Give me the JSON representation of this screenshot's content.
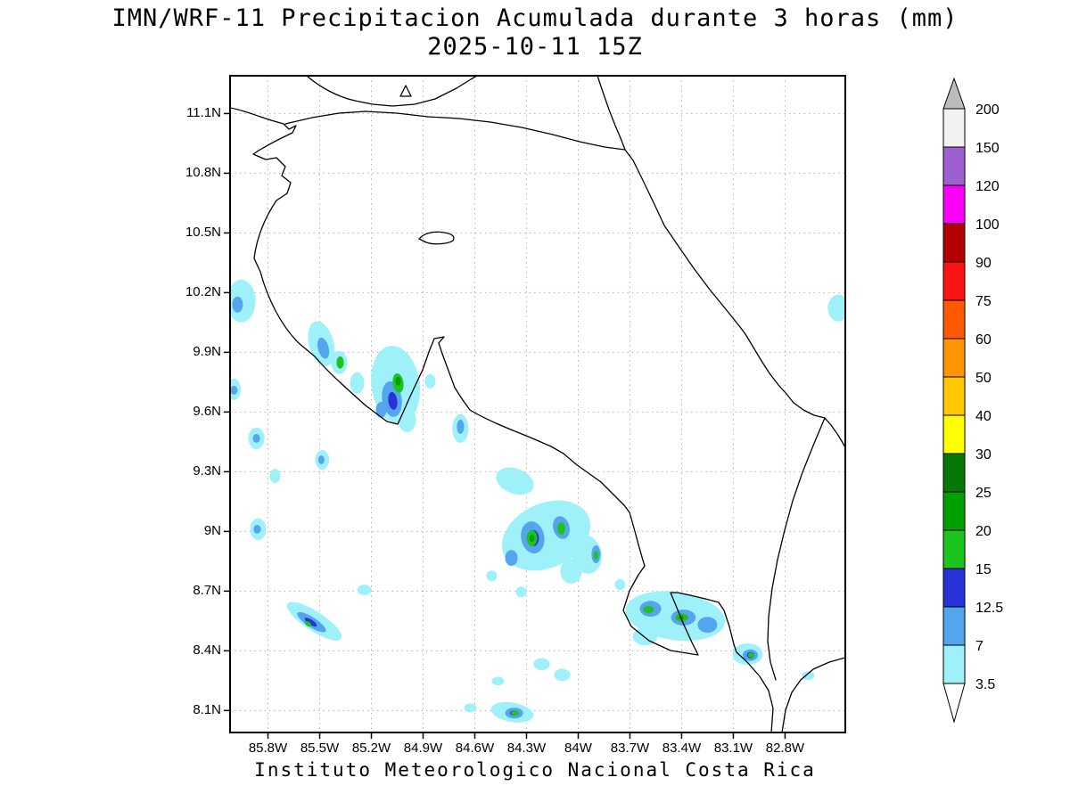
{
  "title": "IMN/WRF-11 Precipitacion Acumulada durante 3 horas (mm)",
  "subtitle": "2025-10-11 15Z",
  "footer": "Instituto Meteorologico Nacional Costa Rica",
  "colorbar": {
    "above_top_color": "#bcbcbc",
    "below_bottom_color": "#ffffff",
    "segment_colors_top_to_bottom": [
      "#f2f2f2",
      "#9e5fd0",
      "#fa00fa",
      "#b40000",
      "#fa1414",
      "#ff5a00",
      "#ff9600",
      "#ffc800",
      "#ffff00",
      "#067806",
      "#00a000",
      "#1ec41e",
      "#2733d6",
      "#55a5ee",
      "#9ff1f9"
    ],
    "palette": {
      "cyan_3p5_7": "#9ff1f9",
      "blue_7_12p5": "#55a5ee",
      "blue_12p5_15": "#2733d6",
      "green_15_20": "#1ec41e",
      "green_20_25": "#00a000"
    }
  },
  "chart_data": {
    "type": "heatmap",
    "title": "IMN/WRF-11 Precipitacion Acumulada durante 3 horas (mm)",
    "valid_time": "2025-10-11 15Z",
    "units": "mm",
    "source": "Instituto Meteorologico Nacional Costa Rica",
    "lat_ticks": [
      "11.1N",
      "10.8N",
      "10.5N",
      "10.2N",
      "9.9N",
      "9.6N",
      "9.3N",
      "9N",
      "8.7N",
      "8.4N",
      "8.1N"
    ],
    "lon_ticks": [
      "85.8W",
      "85.5W",
      "85.2W",
      "84.9W",
      "84.6W",
      "84.3W",
      "84W",
      "83.7W",
      "83.4W",
      "83.1W",
      "82.8W"
    ],
    "lon_range_w": [
      86.02,
      82.45
    ],
    "lat_range_n": [
      7.99,
      11.29
    ],
    "colorbar_levels_mm": [
      "200",
      "150",
      "120",
      "100",
      "90",
      "75",
      "60",
      "50",
      "40",
      "30",
      "25",
      "20",
      "15",
      "12.5",
      "7",
      "3.5"
    ],
    "precip_blobs_lonW_latN_rxDeg_ryDeg_rotDeg_mm": [
      [
        85.955,
        10.158,
        0.083,
        0.107,
        0,
        5
      ],
      [
        85.997,
        9.714,
        0.041,
        0.054,
        0,
        5
      ],
      [
        85.867,
        9.468,
        0.047,
        0.054,
        0,
        5
      ],
      [
        85.49,
        9.943,
        0.072,
        0.116,
        -15,
        5
      ],
      [
        85.386,
        9.849,
        0.047,
        0.058,
        0,
        5
      ],
      [
        85.06,
        9.737,
        0.14,
        0.197,
        -8,
        5
      ],
      [
        84.993,
        9.562,
        0.052,
        0.063,
        0,
        5
      ],
      [
        84.859,
        9.755,
        0.031,
        0.036,
        0,
        5
      ],
      [
        85.283,
        9.746,
        0.041,
        0.054,
        0,
        5
      ],
      [
        84.683,
        9.517,
        0.047,
        0.072,
        0,
        5
      ],
      [
        85.485,
        9.36,
        0.041,
        0.049,
        0,
        5
      ],
      [
        85.759,
        9.279,
        0.031,
        0.036,
        0,
        5
      ],
      [
        85.857,
        9.011,
        0.047,
        0.054,
        0,
        5
      ],
      [
        84.367,
        9.253,
        0.114,
        0.063,
        20,
        5
      ],
      [
        84.186,
        8.979,
        0.269,
        0.161,
        -25,
        5
      ],
      [
        83.953,
        8.885,
        0.088,
        0.099,
        -15,
        5
      ],
      [
        84.041,
        8.8,
        0.062,
        0.063,
        0,
        5
      ],
      [
        85.531,
        8.549,
        0.186,
        0.049,
        33,
        5
      ],
      [
        85.241,
        8.706,
        0.041,
        0.027,
        0,
        5
      ],
      [
        83.437,
        8.575,
        0.29,
        0.121,
        8,
        5
      ],
      [
        83.612,
        8.472,
        0.072,
        0.045,
        0,
        5
      ],
      [
        83.017,
        8.383,
        0.088,
        0.054,
        0,
        5
      ],
      [
        84.383,
        8.091,
        0.124,
        0.049,
        10,
        5
      ],
      [
        84.626,
        8.113,
        0.036,
        0.022,
        0,
        5
      ],
      [
        82.49,
        10.122,
        0.062,
        0.067,
        0,
        5
      ],
      [
        84.502,
        8.777,
        0.031,
        0.027,
        0,
        5
      ],
      [
        84.331,
        8.696,
        0.031,
        0.027,
        0,
        5
      ],
      [
        84.212,
        8.333,
        0.047,
        0.031,
        0,
        5
      ],
      [
        84.093,
        8.279,
        0.047,
        0.031,
        0,
        5
      ],
      [
        84.466,
        8.248,
        0.036,
        0.022,
        0,
        5
      ],
      [
        83.757,
        8.733,
        0.031,
        0.027,
        0,
        5
      ],
      [
        82.666,
        8.275,
        0.036,
        0.022,
        0,
        5
      ],
      [
        85.976,
        10.14,
        0.031,
        0.04,
        0,
        10
      ],
      [
        85.997,
        9.71,
        0.021,
        0.022,
        0,
        10
      ],
      [
        85.867,
        9.468,
        0.021,
        0.022,
        0,
        10
      ],
      [
        85.479,
        9.921,
        0.031,
        0.054,
        -15,
        10
      ],
      [
        85.081,
        9.665,
        0.057,
        0.09,
        -8,
        10
      ],
      [
        85.143,
        9.611,
        0.031,
        0.04,
        0,
        10
      ],
      [
        84.683,
        9.526,
        0.021,
        0.036,
        0,
        10
      ],
      [
        85.49,
        9.36,
        0.018,
        0.022,
        0,
        10
      ],
      [
        85.862,
        9.011,
        0.021,
        0.022,
        0,
        10
      ],
      [
        84.264,
        8.97,
        0.067,
        0.081,
        -10,
        10
      ],
      [
        84.098,
        9.019,
        0.047,
        0.058,
        -15,
        10
      ],
      [
        84.388,
        8.867,
        0.036,
        0.04,
        0,
        10
      ],
      [
        83.897,
        8.885,
        0.026,
        0.045,
        0,
        10
      ],
      [
        85.547,
        8.544,
        0.098,
        0.025,
        33,
        10
      ],
      [
        83.581,
        8.611,
        0.062,
        0.04,
        0,
        10
      ],
      [
        83.39,
        8.567,
        0.072,
        0.04,
        0,
        10
      ],
      [
        83.25,
        8.531,
        0.057,
        0.04,
        0,
        10
      ],
      [
        83.002,
        8.378,
        0.044,
        0.029,
        0,
        10
      ],
      [
        84.372,
        8.087,
        0.052,
        0.027,
        0,
        10
      ],
      [
        85.076,
        9.656,
        0.026,
        0.045,
        -8,
        13
      ],
      [
        84.259,
        8.966,
        0.031,
        0.04,
        0,
        13
      ],
      [
        83.395,
        8.567,
        0.031,
        0.018,
        0,
        13
      ],
      [
        83.0,
        8.378,
        0.021,
        0.016,
        0,
        13
      ],
      [
        85.552,
        8.544,
        0.041,
        0.013,
        33,
        13
      ],
      [
        84.37,
        8.087,
        0.026,
        0.013,
        0,
        13
      ],
      [
        85.381,
        9.849,
        0.021,
        0.031,
        0,
        17
      ],
      [
        85.045,
        9.746,
        0.031,
        0.049,
        -8,
        17
      ],
      [
        84.269,
        8.966,
        0.031,
        0.04,
        0,
        17
      ],
      [
        84.098,
        9.015,
        0.023,
        0.031,
        0,
        17
      ],
      [
        83.897,
        8.88,
        0.013,
        0.022,
        0,
        17
      ],
      [
        85.567,
        8.535,
        0.021,
        0.011,
        33,
        17
      ],
      [
        83.592,
        8.607,
        0.031,
        0.018,
        0,
        17
      ],
      [
        83.4,
        8.567,
        0.036,
        0.02,
        0,
        17
      ],
      [
        82.997,
        8.378,
        0.018,
        0.013,
        0,
        17
      ],
      [
        84.367,
        8.087,
        0.023,
        0.013,
        0,
        17
      ],
      [
        85.045,
        9.755,
        0.016,
        0.022,
        0,
        22
      ],
      [
        84.269,
        8.966,
        0.014,
        0.018,
        0,
        22
      ],
      [
        83.403,
        8.567,
        0.016,
        0.009,
        0,
        22
      ]
    ]
  }
}
